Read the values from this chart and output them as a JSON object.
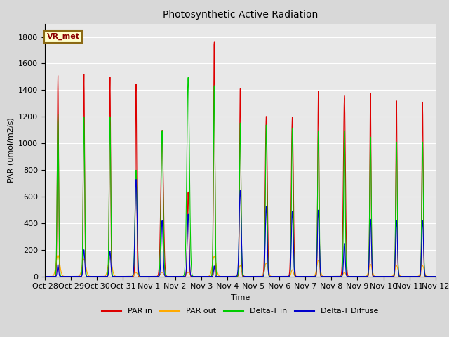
{
  "title": "Photosynthetic Active Radiation",
  "ylabel": "PAR (umol/m2/s)",
  "xlabel": "Time",
  "annotation": "VR_met",
  "ylim": [
    0,
    1900
  ],
  "fig_bg_color": "#d8d8d8",
  "plot_bg_color": "#e8e8e8",
  "colors": {
    "PAR_in": "#dd0000",
    "PAR_out": "#ffaa00",
    "Delta_T_in": "#00cc00",
    "Delta_T_Diffuse": "#0000cc"
  },
  "xtick_labels": [
    "Oct 28",
    "Oct 29",
    "Oct 30",
    "Oct 31",
    "Nov 1",
    "Nov 2",
    "Nov 3",
    "Nov 4",
    "Nov 5",
    "Nov 6",
    "Nov 7",
    "Nov 8",
    "Nov 9",
    "Nov 10",
    "Nov 11",
    "Nov 12"
  ],
  "legend_labels": [
    "PAR in",
    "PAR out",
    "Delta-T in",
    "Delta-T Diffuse"
  ],
  "par_in_peaks": [
    1510,
    1520,
    1500,
    1450,
    1100,
    640,
    1790,
    1440,
    1210,
    1200,
    1400,
    1360,
    1380,
    1320,
    1310
  ],
  "par_out_peaks": [
    160,
    130,
    140,
    30,
    30,
    30,
    150,
    80,
    100,
    50,
    120,
    30,
    90,
    80,
    80
  ],
  "delta_t_in_peaks": [
    1220,
    1200,
    1200,
    800,
    1100,
    1500,
    1450,
    1170,
    1150,
    1120,
    1100,
    1100,
    1050,
    1010,
    1010
  ],
  "delta_t_d_peaks": [
    90,
    200,
    190,
    730,
    420,
    470,
    80,
    650,
    530,
    490,
    500,
    250,
    430,
    420,
    420
  ],
  "par_in_widths": [
    0.025,
    0.025,
    0.025,
    0.025,
    0.05,
    0.03,
    0.025,
    0.025,
    0.04,
    0.04,
    0.025,
    0.04,
    0.025,
    0.025,
    0.025
  ],
  "par_out_widths": [
    0.07,
    0.07,
    0.07,
    0.05,
    0.06,
    0.06,
    0.07,
    0.06,
    0.06,
    0.04,
    0.06,
    0.05,
    0.06,
    0.06,
    0.06
  ],
  "delta_t_in_widths": [
    0.03,
    0.03,
    0.03,
    0.04,
    0.04,
    0.05,
    0.03,
    0.03,
    0.03,
    0.03,
    0.03,
    0.03,
    0.03,
    0.03,
    0.03
  ],
  "delta_t_d_widths": [
    0.025,
    0.03,
    0.03,
    0.04,
    0.035,
    0.035,
    0.02,
    0.04,
    0.035,
    0.035,
    0.035,
    0.03,
    0.035,
    0.035,
    0.035
  ]
}
